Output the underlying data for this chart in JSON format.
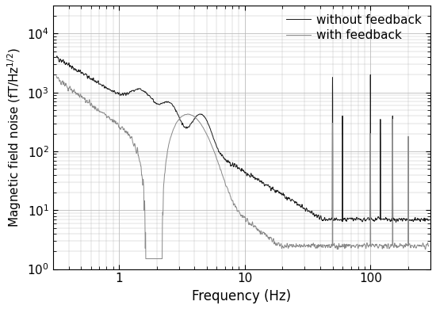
{
  "xlabel": "Frequency (Hz)",
  "ylabel": "Magnetic field noise (fT/Hz$^{1/2}$)",
  "xlim": [
    0.3,
    300
  ],
  "ylim": [
    1,
    30000
  ],
  "legend": [
    "without feedback",
    "with feedback"
  ],
  "line_colors_no_fb": "#1a1a1a",
  "line_colors_fb": "#888888",
  "line_width": 0.7,
  "grid_color": "#bbbbbb",
  "background_color": "#ffffff",
  "font_size": 12,
  "label_font_size": 12,
  "spike_freqs_no_fb": [
    50,
    60,
    100,
    120,
    150
  ],
  "spike_amps_no_fb": [
    1800,
    400,
    2000,
    350,
    400
  ],
  "spike_freqs_fb": [
    50,
    100,
    150,
    200
  ],
  "spike_amps_fb": [
    300,
    200,
    350,
    180
  ]
}
